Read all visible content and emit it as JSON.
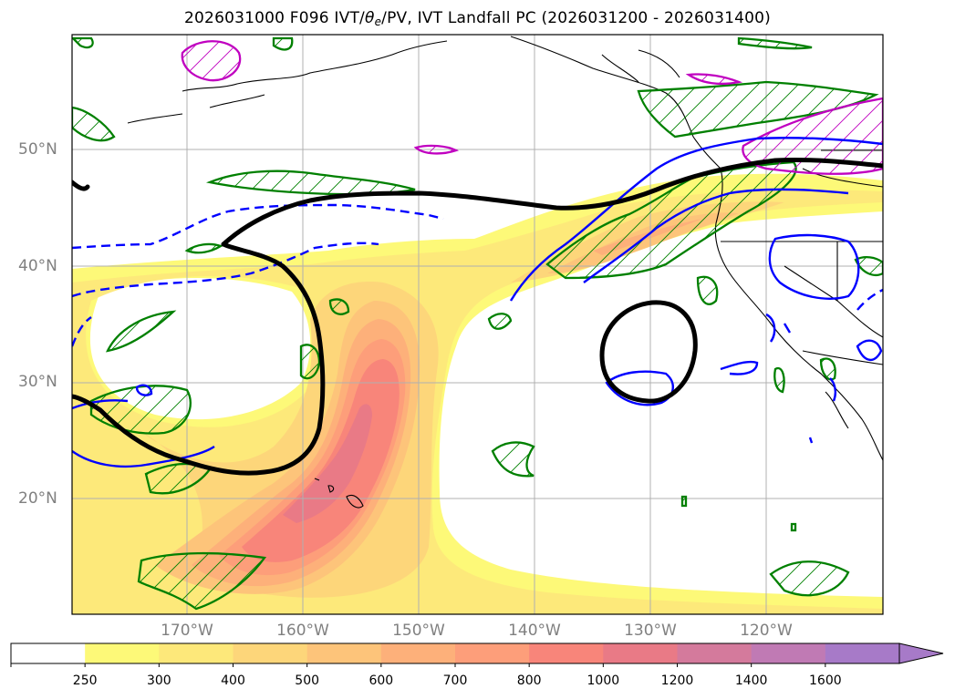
{
  "title": {
    "prefix": "2026031000 F096 IVT/",
    "theta": "θ",
    "theta_sub": "e",
    "suffix": "/PV, IVT Landfall PC (2026031200 - 2026031400)"
  },
  "lat_labels": [
    "50°N",
    "40°N",
    "30°N",
    "20°N"
  ],
  "lon_labels": [
    "170°W",
    "160°W",
    "150°W",
    "140°W",
    "130°W",
    "120°W"
  ],
  "colorbar": {
    "ticks": [
      "250",
      "300",
      "400",
      "500",
      "600",
      "700",
      "800",
      "1000",
      "1200",
      "1400",
      "1600"
    ],
    "colors": [
      "#ffffff",
      "#fdf978",
      "#fde87a",
      "#fdd67a",
      "#fdc47a",
      "#fdb07a",
      "#fd9e7a",
      "#f8857a",
      "#e97a86",
      "#d47a9c",
      "#c07ab4",
      "#a77ac8"
    ],
    "extend": "max"
  },
  "colors": {
    "ivt_pc_contour": "#000000",
    "theta_e_solid": "#0000ff",
    "theta_e_dashed": "#0000ff",
    "pv_green": "#008000",
    "pv_magenta": "#c000c0",
    "coastline": "#000000",
    "grid": "#b0b0b0"
  }
}
